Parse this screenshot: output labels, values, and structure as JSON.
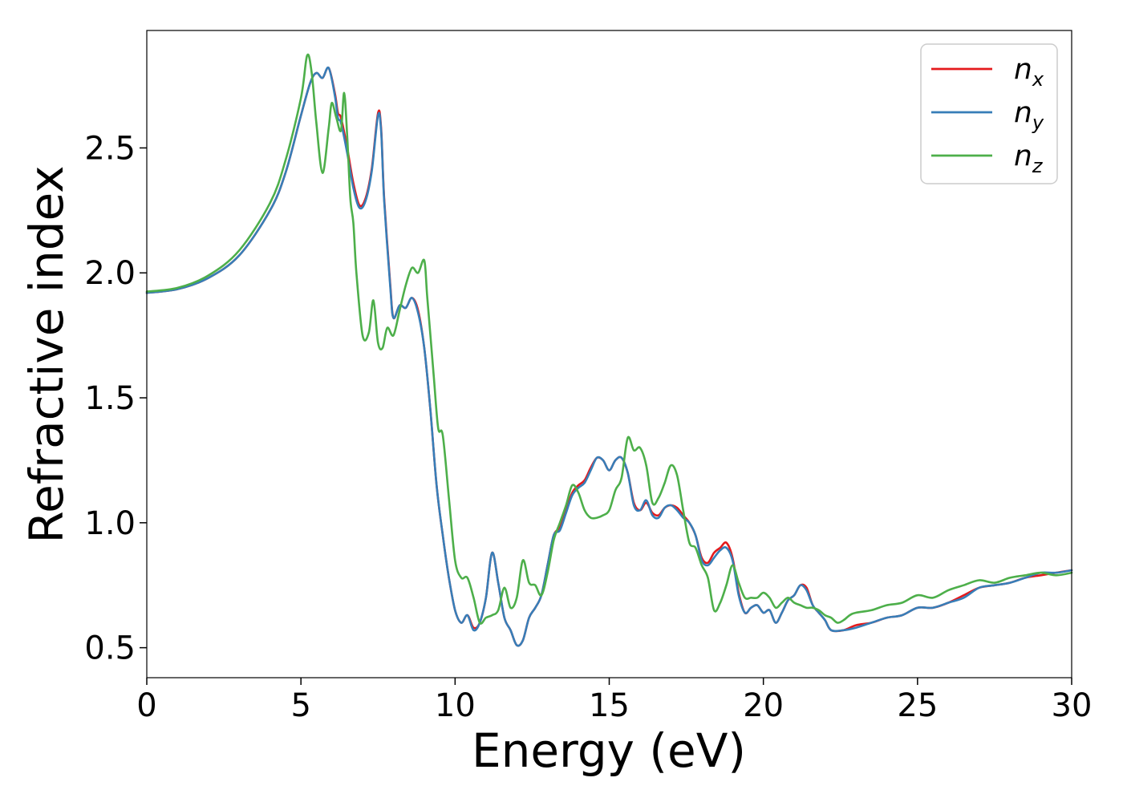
{
  "chart_data": {
    "type": "line",
    "xlabel": "Energy (eV)",
    "ylabel": "Refractive index",
    "xlim": [
      0,
      30
    ],
    "ylim": [
      0.38,
      2.97
    ],
    "grid": false,
    "legend_position": "top-right",
    "xticks": [
      "0",
      "5",
      "10",
      "15",
      "20",
      "25",
      "30"
    ],
    "yticks": [
      "0.5",
      "1.0",
      "1.5",
      "2.0",
      "2.5"
    ],
    "series": [
      {
        "name": "n",
        "subscript": "x",
        "color": "#e41a1c",
        "x": [
          0,
          1,
          2,
          3,
          4,
          4.5,
          5,
          5.3,
          5.5,
          5.7,
          5.9,
          6.1,
          6.2,
          6.3,
          6.5,
          6.7,
          6.9,
          7.1,
          7.3,
          7.5,
          7.6,
          7.7,
          7.9,
          8.0,
          8.2,
          8.4,
          8.6,
          8.8,
          9.0,
          9.2,
          9.4,
          9.6,
          9.8,
          10.0,
          10.2,
          10.4,
          10.6,
          10.8,
          11.0,
          11.2,
          11.4,
          11.6,
          11.8,
          12.0,
          12.2,
          12.4,
          12.6,
          12.8,
          13.0,
          13.2,
          13.4,
          13.6,
          13.8,
          14.0,
          14.2,
          14.4,
          14.6,
          14.8,
          15.0,
          15.2,
          15.4,
          15.6,
          15.8,
          16.0,
          16.2,
          16.4,
          16.6,
          16.8,
          17.0,
          17.2,
          17.4,
          17.6,
          17.8,
          18.0,
          18.2,
          18.4,
          18.6,
          18.8,
          19.0,
          19.2,
          19.4,
          19.6,
          19.8,
          20.0,
          20.2,
          20.4,
          20.6,
          20.8,
          21.0,
          21.2,
          21.4,
          21.6,
          21.8,
          22.0,
          22.2,
          22.6,
          23,
          23.5,
          24,
          24.5,
          25,
          25.5,
          26,
          26.5,
          27,
          27.5,
          28,
          28.5,
          29,
          29.5,
          30
        ],
        "y": [
          1.92,
          1.935,
          1.98,
          2.07,
          2.25,
          2.4,
          2.63,
          2.76,
          2.8,
          2.78,
          2.82,
          2.72,
          2.64,
          2.62,
          2.5,
          2.36,
          2.27,
          2.3,
          2.42,
          2.64,
          2.58,
          2.3,
          1.95,
          1.82,
          1.87,
          1.86,
          1.9,
          1.85,
          1.7,
          1.45,
          1.15,
          0.95,
          0.78,
          0.65,
          0.6,
          0.63,
          0.58,
          0.6,
          0.7,
          0.88,
          0.76,
          0.62,
          0.57,
          0.51,
          0.53,
          0.62,
          0.66,
          0.71,
          0.83,
          0.95,
          0.98,
          1.05,
          1.12,
          1.15,
          1.17,
          1.22,
          1.26,
          1.25,
          1.21,
          1.25,
          1.26,
          1.2,
          1.08,
          1.05,
          1.08,
          1.04,
          1.03,
          1.06,
          1.07,
          1.06,
          1.03,
          1.0,
          0.95,
          0.86,
          0.84,
          0.88,
          0.9,
          0.92,
          0.86,
          0.72,
          0.64,
          0.66,
          0.67,
          0.64,
          0.65,
          0.6,
          0.64,
          0.69,
          0.71,
          0.75,
          0.74,
          0.67,
          0.64,
          0.61,
          0.57,
          0.57,
          0.59,
          0.6,
          0.62,
          0.63,
          0.66,
          0.66,
          0.68,
          0.71,
          0.74,
          0.75,
          0.76,
          0.78,
          0.79,
          0.8,
          0.81
        ]
      },
      {
        "name": "n",
        "subscript": "y",
        "color": "#377eb8",
        "x": [
          0,
          1,
          2,
          3,
          4,
          4.5,
          5,
          5.3,
          5.5,
          5.7,
          5.9,
          6.1,
          6.2,
          6.3,
          6.5,
          6.7,
          6.9,
          7.1,
          7.3,
          7.5,
          7.6,
          7.7,
          7.9,
          8.0,
          8.2,
          8.4,
          8.6,
          8.8,
          9.0,
          9.2,
          9.4,
          9.6,
          9.8,
          10.0,
          10.2,
          10.4,
          10.6,
          10.8,
          11.0,
          11.2,
          11.4,
          11.6,
          11.8,
          12.0,
          12.2,
          12.4,
          12.6,
          12.8,
          13.0,
          13.2,
          13.4,
          13.6,
          13.8,
          14.0,
          14.2,
          14.4,
          14.6,
          14.8,
          15.0,
          15.2,
          15.4,
          15.6,
          15.8,
          16.0,
          16.2,
          16.4,
          16.6,
          16.8,
          17.0,
          17.2,
          17.4,
          17.6,
          17.8,
          18.0,
          18.2,
          18.4,
          18.6,
          18.8,
          19.0,
          19.2,
          19.4,
          19.6,
          19.8,
          20.0,
          20.2,
          20.4,
          20.6,
          20.8,
          21.0,
          21.2,
          21.4,
          21.6,
          21.8,
          22.0,
          22.2,
          22.6,
          23,
          23.5,
          24,
          24.5,
          25,
          25.5,
          26,
          26.5,
          27,
          27.5,
          28,
          28.5,
          29,
          29.5,
          30
        ],
        "y": [
          1.92,
          1.935,
          1.98,
          2.07,
          2.25,
          2.4,
          2.63,
          2.76,
          2.8,
          2.78,
          2.82,
          2.71,
          2.62,
          2.6,
          2.48,
          2.34,
          2.26,
          2.29,
          2.41,
          2.63,
          2.57,
          2.29,
          1.94,
          1.82,
          1.87,
          1.86,
          1.9,
          1.84,
          1.7,
          1.45,
          1.15,
          0.95,
          0.78,
          0.65,
          0.6,
          0.63,
          0.57,
          0.6,
          0.7,
          0.88,
          0.76,
          0.62,
          0.57,
          0.51,
          0.53,
          0.62,
          0.66,
          0.71,
          0.83,
          0.95,
          0.97,
          1.04,
          1.11,
          1.14,
          1.16,
          1.21,
          1.26,
          1.25,
          1.21,
          1.25,
          1.26,
          1.2,
          1.07,
          1.05,
          1.09,
          1.03,
          1.02,
          1.06,
          1.07,
          1.05,
          1.02,
          1.0,
          0.95,
          0.85,
          0.83,
          0.86,
          0.89,
          0.9,
          0.85,
          0.71,
          0.64,
          0.66,
          0.67,
          0.64,
          0.65,
          0.6,
          0.64,
          0.69,
          0.71,
          0.75,
          0.73,
          0.67,
          0.64,
          0.61,
          0.57,
          0.57,
          0.58,
          0.6,
          0.62,
          0.63,
          0.66,
          0.66,
          0.68,
          0.7,
          0.74,
          0.75,
          0.76,
          0.78,
          0.8,
          0.8,
          0.81
        ]
      },
      {
        "name": "n",
        "subscript": "z",
        "color": "#4daf4a",
        "x": [
          0,
          1,
          2,
          3,
          4,
          4.5,
          5.0,
          5.2,
          5.35,
          5.5,
          5.7,
          5.9,
          6.0,
          6.15,
          6.3,
          6.4,
          6.5,
          6.6,
          6.7,
          6.8,
          7.0,
          7.2,
          7.35,
          7.5,
          7.65,
          7.8,
          8.0,
          8.2,
          8.4,
          8.6,
          8.8,
          9.0,
          9.1,
          9.3,
          9.45,
          9.6,
          9.8,
          10.0,
          10.2,
          10.4,
          10.6,
          10.8,
          11.0,
          11.2,
          11.4,
          11.6,
          11.8,
          12.0,
          12.2,
          12.4,
          12.6,
          12.8,
          13.0,
          13.2,
          13.4,
          13.6,
          13.8,
          14.0,
          14.2,
          14.4,
          14.6,
          14.8,
          15.0,
          15.2,
          15.4,
          15.6,
          15.8,
          16.0,
          16.2,
          16.4,
          16.6,
          16.8,
          17.0,
          17.2,
          17.4,
          17.6,
          17.8,
          18.0,
          18.2,
          18.4,
          18.6,
          18.8,
          19.0,
          19.2,
          19.4,
          19.6,
          19.8,
          20.0,
          20.2,
          20.4,
          20.6,
          20.8,
          21.0,
          21.2,
          21.4,
          21.6,
          21.8,
          22.0,
          22.2,
          22.4,
          22.6,
          22.8,
          23,
          23.5,
          24,
          24.5,
          25,
          25.5,
          26,
          26.5,
          27,
          27.5,
          28,
          28.5,
          29,
          29.5,
          30
        ],
        "y": [
          1.925,
          1.94,
          1.99,
          2.09,
          2.28,
          2.45,
          2.7,
          2.87,
          2.8,
          2.6,
          2.4,
          2.58,
          2.68,
          2.62,
          2.57,
          2.72,
          2.55,
          2.3,
          2.2,
          2.0,
          1.75,
          1.76,
          1.89,
          1.72,
          1.7,
          1.78,
          1.75,
          1.85,
          1.95,
          2.02,
          2.0,
          2.05,
          1.9,
          1.6,
          1.38,
          1.35,
          1.1,
          0.85,
          0.78,
          0.78,
          0.7,
          0.6,
          0.62,
          0.63,
          0.65,
          0.74,
          0.66,
          0.7,
          0.85,
          0.76,
          0.75,
          0.71,
          0.8,
          0.93,
          1.0,
          1.07,
          1.15,
          1.12,
          1.05,
          1.02,
          1.02,
          1.03,
          1.05,
          1.13,
          1.18,
          1.34,
          1.29,
          1.3,
          1.23,
          1.08,
          1.1,
          1.16,
          1.23,
          1.19,
          1.05,
          0.92,
          0.9,
          0.83,
          0.78,
          0.65,
          0.68,
          0.75,
          0.83,
          0.76,
          0.7,
          0.7,
          0.7,
          0.72,
          0.7,
          0.66,
          0.68,
          0.7,
          0.68,
          0.67,
          0.66,
          0.66,
          0.65,
          0.63,
          0.62,
          0.6,
          0.61,
          0.63,
          0.64,
          0.65,
          0.67,
          0.68,
          0.71,
          0.7,
          0.73,
          0.75,
          0.77,
          0.76,
          0.78,
          0.79,
          0.8,
          0.79,
          0.8
        ]
      }
    ]
  }
}
